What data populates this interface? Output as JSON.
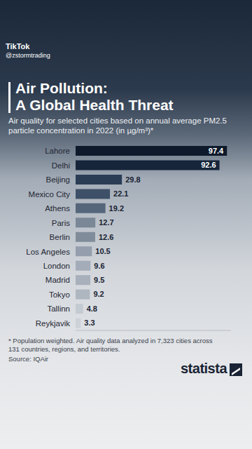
{
  "chart_data": {
    "type": "bar",
    "orientation": "horizontal",
    "title": "Air Pollution:\nA Global Health Threat",
    "subtitle": "Air quality for selected cities based on annual average PM2.5 particle concentration in 2022 (in µg/m³)*",
    "categories": [
      "Lahore",
      "Delhi",
      "Beijing",
      "Mexico City",
      "Athens",
      "Paris",
      "Berlin",
      "Los Angeles",
      "London",
      "Madrid",
      "Tokyo",
      "Tallinn",
      "Reykjavik"
    ],
    "values": [
      97.4,
      92.6,
      29.8,
      22.1,
      19.2,
      12.7,
      12.6,
      10.5,
      9.6,
      9.5,
      9.2,
      4.8,
      3.3
    ],
    "colors": [
      "#0e1a2b",
      "#16253a",
      "#2a3d55",
      "#3d5068",
      "#55667b",
      "#7a8796",
      "#808c9a",
      "#949ead",
      "#a3acb8",
      "#a8b0bb",
      "#aeb6c0",
      "#c4cad2",
      "#cdd2d8"
    ],
    "xlim": [
      0,
      100
    ],
    "grid": false,
    "data_labels": true,
    "tick_labels": "y",
    "footnote": "* Population weighted. Air quality data analyzed in 7,323 cities across 131 countries, regions, and territories.",
    "source": "Source: IQAir",
    "logo": "statista",
    "watermark": [
      "TikTok",
      "@zstormtrading"
    ]
  }
}
